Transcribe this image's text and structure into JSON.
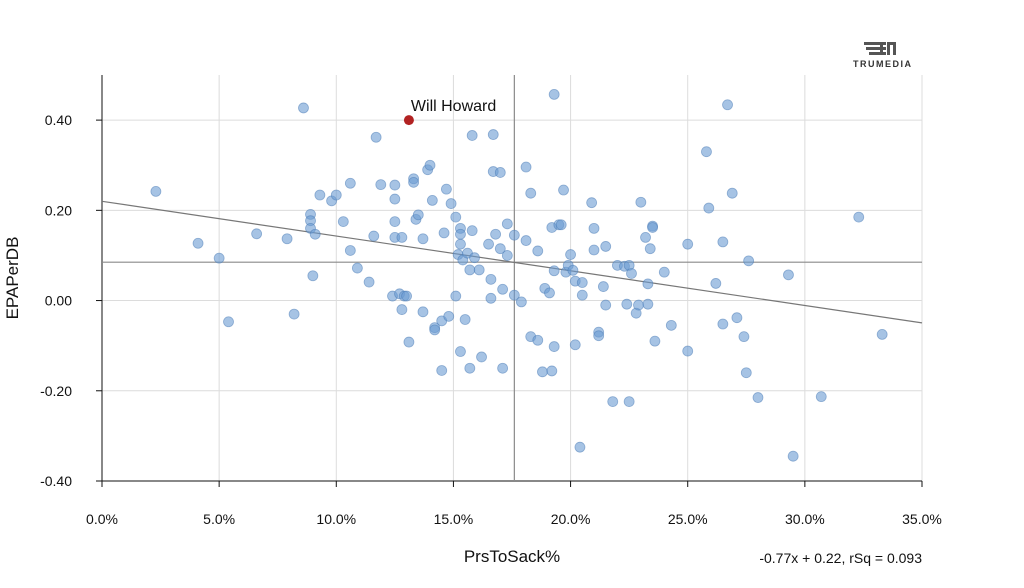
{
  "brand": {
    "logo_text": "TRUMEDIA"
  },
  "chart_data": {
    "type": "scatter",
    "title": "",
    "xlabel": "PrsToSack%",
    "ylabel": "EPAPerDB",
    "xlim": [
      0,
      35
    ],
    "ylim": [
      -0.4,
      0.5
    ],
    "x_ticks": [
      0,
      5,
      10,
      15,
      20,
      25,
      30,
      35
    ],
    "x_tick_labels": [
      "0.0%",
      "5.0%",
      "10.0%",
      "15.0%",
      "20.0%",
      "25.0%",
      "30.0%",
      "35.0%"
    ],
    "y_ticks": [
      0.4,
      0.2,
      0.0,
      -0.2,
      -0.4
    ],
    "y_tick_labels": [
      "0.40",
      "0.20",
      "0.00",
      "-0.20",
      "-0.40"
    ],
    "grid": true,
    "point_color": "#6b9bd2",
    "highlight_color": "#b22222",
    "mean_lines": {
      "x": 17.6,
      "y": 0.085
    },
    "trendline": {
      "slope": -0.77,
      "intercept": 0.22
    },
    "equation_label": "-0.77x + 0.22, rSq = 0.093",
    "highlight": {
      "label": "Will Howard",
      "x": 13.1,
      "y": 0.4
    },
    "points": [
      [
        2.3,
        0.242
      ],
      [
        4.1,
        0.127
      ],
      [
        5.0,
        0.094
      ],
      [
        5.4,
        -0.047
      ],
      [
        6.6,
        0.148
      ],
      [
        7.9,
        0.137
      ],
      [
        8.2,
        -0.03
      ],
      [
        8.6,
        0.427
      ],
      [
        8.9,
        0.191
      ],
      [
        8.9,
        0.177
      ],
      [
        8.9,
        0.16
      ],
      [
        9.0,
        0.055
      ],
      [
        9.1,
        0.147
      ],
      [
        9.3,
        0.234
      ],
      [
        9.8,
        0.221
      ],
      [
        10.0,
        0.234
      ],
      [
        10.3,
        0.175
      ],
      [
        10.6,
        0.26
      ],
      [
        10.6,
        0.111
      ],
      [
        10.9,
        0.072
      ],
      [
        11.4,
        0.041
      ],
      [
        11.6,
        0.143
      ],
      [
        11.7,
        0.362
      ],
      [
        11.9,
        0.257
      ],
      [
        12.4,
        0.01
      ],
      [
        12.5,
        0.256
      ],
      [
        12.5,
        0.225
      ],
      [
        12.5,
        0.175
      ],
      [
        12.5,
        0.14
      ],
      [
        12.7,
        0.015
      ],
      [
        12.8,
        0.14
      ],
      [
        12.8,
        -0.02
      ],
      [
        12.9,
        0.01
      ],
      [
        13.0,
        0.01
      ],
      [
        13.1,
        -0.092
      ],
      [
        13.3,
        0.27
      ],
      [
        13.3,
        0.262
      ],
      [
        13.4,
        0.18
      ],
      [
        13.5,
        0.19
      ],
      [
        13.7,
        0.137
      ],
      [
        13.7,
        -0.025
      ],
      [
        13.9,
        0.29
      ],
      [
        14.0,
        0.3
      ],
      [
        14.1,
        0.222
      ],
      [
        14.2,
        -0.06
      ],
      [
        14.2,
        -0.065
      ],
      [
        14.5,
        -0.045
      ],
      [
        14.5,
        -0.155
      ],
      [
        14.6,
        0.15
      ],
      [
        14.7,
        0.247
      ],
      [
        14.8,
        -0.035
      ],
      [
        14.9,
        0.215
      ],
      [
        15.1,
        0.185
      ],
      [
        15.1,
        0.01
      ],
      [
        15.2,
        0.102
      ],
      [
        15.3,
        0.16
      ],
      [
        15.3,
        0.147
      ],
      [
        15.3,
        0.125
      ],
      [
        15.3,
        -0.113
      ],
      [
        15.4,
        0.09
      ],
      [
        15.5,
        -0.042
      ],
      [
        15.6,
        0.105
      ],
      [
        15.7,
        0.068
      ],
      [
        15.7,
        -0.15
      ],
      [
        15.8,
        0.155
      ],
      [
        15.8,
        0.366
      ],
      [
        15.9,
        0.095
      ],
      [
        16.1,
        0.068
      ],
      [
        16.2,
        -0.125
      ],
      [
        16.5,
        0.125
      ],
      [
        16.6,
        0.047
      ],
      [
        16.6,
        0.005
      ],
      [
        16.7,
        0.368
      ],
      [
        16.7,
        0.286
      ],
      [
        16.8,
        0.147
      ],
      [
        17.0,
        0.284
      ],
      [
        17.0,
        0.115
      ],
      [
        17.1,
        0.025
      ],
      [
        17.1,
        -0.15
      ],
      [
        17.3,
        0.17
      ],
      [
        17.3,
        0.1
      ],
      [
        17.6,
        0.145
      ],
      [
        17.6,
        0.012
      ],
      [
        17.9,
        -0.003
      ],
      [
        18.1,
        0.296
      ],
      [
        18.1,
        0.133
      ],
      [
        18.3,
        0.238
      ],
      [
        18.3,
        -0.08
      ],
      [
        18.6,
        0.11
      ],
      [
        18.6,
        -0.088
      ],
      [
        18.8,
        -0.158
      ],
      [
        18.9,
        0.027
      ],
      [
        19.1,
        0.017
      ],
      [
        19.2,
        -0.156
      ],
      [
        19.2,
        0.162
      ],
      [
        19.3,
        0.457
      ],
      [
        19.3,
        0.066
      ],
      [
        19.3,
        -0.102
      ],
      [
        19.5,
        0.168
      ],
      [
        19.6,
        0.168
      ],
      [
        19.7,
        0.245
      ],
      [
        19.8,
        0.063
      ],
      [
        19.9,
        0.078
      ],
      [
        20.0,
        0.102
      ],
      [
        20.1,
        0.067
      ],
      [
        20.2,
        0.043
      ],
      [
        20.2,
        -0.098
      ],
      [
        20.4,
        -0.325
      ],
      [
        20.5,
        0.012
      ],
      [
        20.5,
        0.04
      ],
      [
        20.9,
        0.217
      ],
      [
        21.0,
        0.112
      ],
      [
        21.0,
        0.16
      ],
      [
        21.2,
        -0.07
      ],
      [
        21.2,
        -0.078
      ],
      [
        21.4,
        0.031
      ],
      [
        21.5,
        -0.01
      ],
      [
        21.5,
        0.12
      ],
      [
        21.8,
        -0.224
      ],
      [
        22.0,
        0.078
      ],
      [
        22.3,
        0.076
      ],
      [
        22.4,
        -0.008
      ],
      [
        22.5,
        -0.224
      ],
      [
        22.5,
        0.078
      ],
      [
        22.6,
        0.06
      ],
      [
        22.8,
        -0.028
      ],
      [
        22.9,
        -0.01
      ],
      [
        23.0,
        0.218
      ],
      [
        23.2,
        0.14
      ],
      [
        23.3,
        0.037
      ],
      [
        23.3,
        -0.008
      ],
      [
        23.4,
        0.115
      ],
      [
        23.5,
        0.165
      ],
      [
        23.5,
        0.162
      ],
      [
        23.6,
        -0.09
      ],
      [
        24.0,
        0.063
      ],
      [
        24.3,
        -0.055
      ],
      [
        25.0,
        0.125
      ],
      [
        25.0,
        -0.112
      ],
      [
        25.8,
        0.33
      ],
      [
        25.9,
        0.205
      ],
      [
        26.2,
        0.038
      ],
      [
        26.5,
        0.13
      ],
      [
        26.5,
        -0.052
      ],
      [
        26.7,
        0.434
      ],
      [
        26.9,
        0.238
      ],
      [
        27.1,
        -0.038
      ],
      [
        27.4,
        -0.08
      ],
      [
        27.5,
        -0.16
      ],
      [
        27.6,
        0.088
      ],
      [
        28.0,
        -0.215
      ],
      [
        29.3,
        0.057
      ],
      [
        29.5,
        -0.345
      ],
      [
        30.7,
        -0.213
      ],
      [
        32.3,
        0.185
      ],
      [
        33.3,
        -0.075
      ]
    ]
  }
}
